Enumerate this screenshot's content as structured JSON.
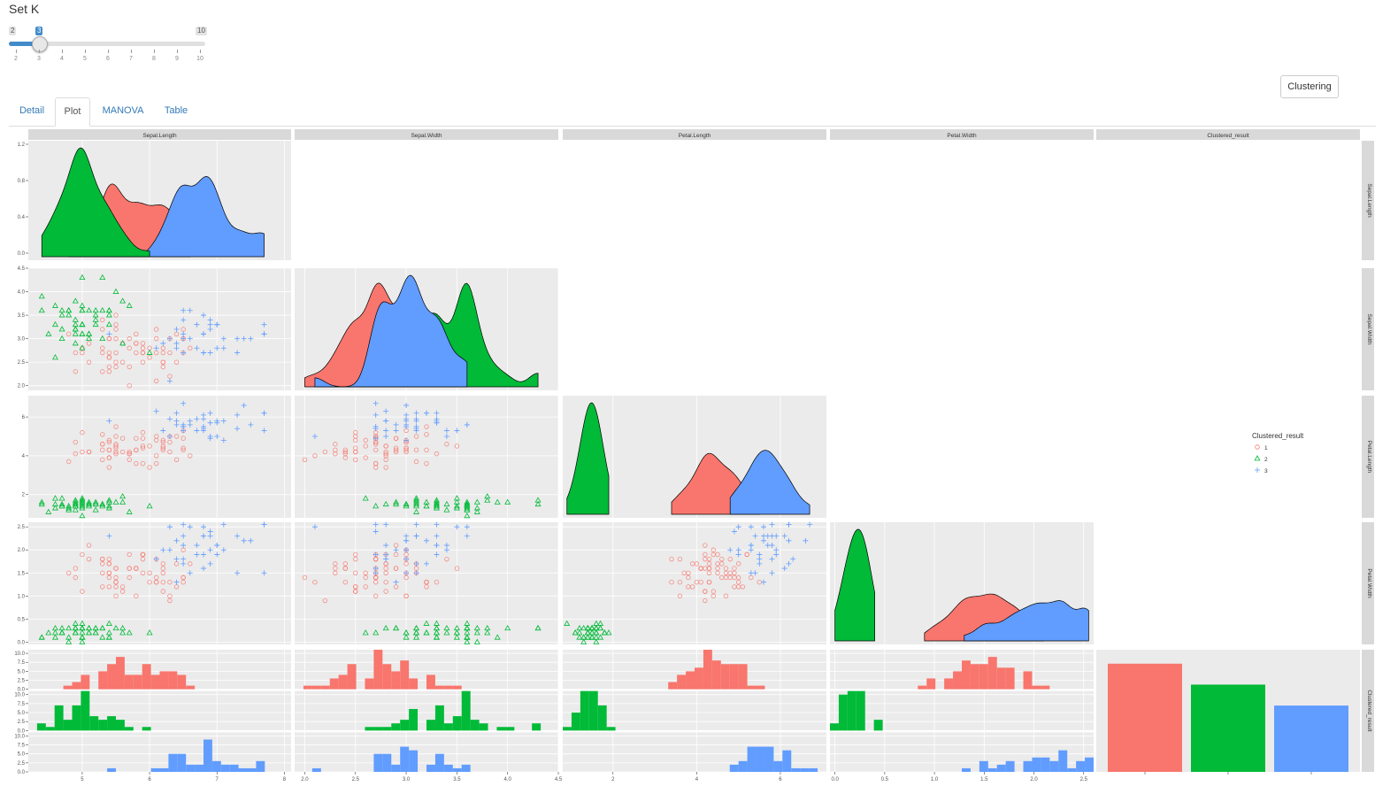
{
  "setk": {
    "title": "Set K",
    "min": 2,
    "max": 10,
    "value": 3,
    "min_label": "2",
    "max_label": "10",
    "value_label": "3",
    "ticks": [
      "2",
      "3",
      "4",
      "5",
      "6",
      "7",
      "8",
      "9",
      "10"
    ]
  },
  "toolbar": {
    "cluster_button": "Clustering"
  },
  "tabs": [
    {
      "label": "Detail",
      "active": false
    },
    {
      "label": "Plot",
      "active": true
    },
    {
      "label": "MANOVA",
      "active": false
    },
    {
      "label": "Table",
      "active": false
    }
  ],
  "chart_data": {
    "type": "scatter",
    "variables": [
      "Sepal.Length",
      "Sepal.Width",
      "Petal.Length",
      "Petal.Width",
      "Clustered_result"
    ],
    "legend": {
      "title": "Clustered_result",
      "entries": [
        "1",
        "2",
        "3"
      ],
      "placement": "right"
    },
    "colors": {
      "1": "#F8766D",
      "2": "#00BA38",
      "3": "#619CFF"
    },
    "axes": {
      "Sepal.Length": {
        "range": [
          4.2,
          8.1
        ],
        "ticks": [
          5,
          6,
          7,
          8
        ]
      },
      "Sepal.Width": {
        "range": [
          1.9,
          4.5
        ],
        "ticks": [
          2.0,
          2.5,
          3.0,
          3.5,
          4.0,
          4.5
        ]
      },
      "Petal.Length": {
        "range": [
          0.8,
          7.1
        ],
        "ticks": [
          2,
          4,
          6
        ]
      },
      "Petal.Width": {
        "range": [
          -0.05,
          2.6
        ],
        "ticks": [
          0.0,
          0.5,
          1.0,
          1.5,
          2.0,
          2.5
        ]
      }
    },
    "y_ticks": {
      "Sepal.Length": [
        "0.0",
        "0.4",
        "0.8",
        "1.2"
      ],
      "Sepal.Width": [
        "2.0",
        "2.5",
        "3.0",
        "3.5",
        "4.0",
        "4.5"
      ],
      "Petal.Length": [
        "2",
        "4",
        "6"
      ],
      "Petal.Width": [
        "0.0",
        "0.5",
        "1.0",
        "1.5",
        "2.0",
        "2.5"
      ],
      "Clustered_result": [
        "0.0",
        "2.5",
        "5.0",
        "7.5",
        "10.0"
      ]
    },
    "x_tick_labels": {
      "Sepal.Length": [
        "5",
        "6",
        "7",
        "8"
      ],
      "Sepal.Width": [
        "2.0",
        "2.5",
        "3.0",
        "3.5",
        "4.0",
        "4.5"
      ],
      "Petal.Length": [
        "2",
        "4",
        "6"
      ],
      "Petal.Width": [
        "0.0",
        "0.5",
        "1.0",
        "1.5",
        "2.0",
        "2.5"
      ]
    },
    "cluster_counts": [
      {
        "cluster": "1",
        "count": 62
      },
      {
        "cluster": "2",
        "count": 50
      },
      {
        "cluster": "3",
        "count": 38
      }
    ],
    "bar_ylim": [
      0,
      70
    ],
    "clusters": [
      {
        "name": "1",
        "n": 62,
        "Sepal.Length": [
          5.8,
          0.45
        ],
        "Sepal.Width": [
          2.75,
          0.3
        ],
        "Petal.Length": [
          4.4,
          0.5
        ],
        "Petal.Width": [
          1.45,
          0.3
        ]
      },
      {
        "name": "2",
        "n": 50,
        "Sepal.Length": [
          5.0,
          0.35
        ],
        "Sepal.Width": [
          3.42,
          0.38
        ],
        "Petal.Length": [
          1.46,
          0.17
        ],
        "Petal.Width": [
          0.24,
          0.1
        ]
      },
      {
        "name": "3",
        "n": 38,
        "Sepal.Length": [
          6.85,
          0.5
        ],
        "Sepal.Width": [
          3.07,
          0.29
        ],
        "Petal.Length": [
          5.74,
          0.49
        ],
        "Petal.Width": [
          2.07,
          0.28
        ]
      }
    ]
  }
}
